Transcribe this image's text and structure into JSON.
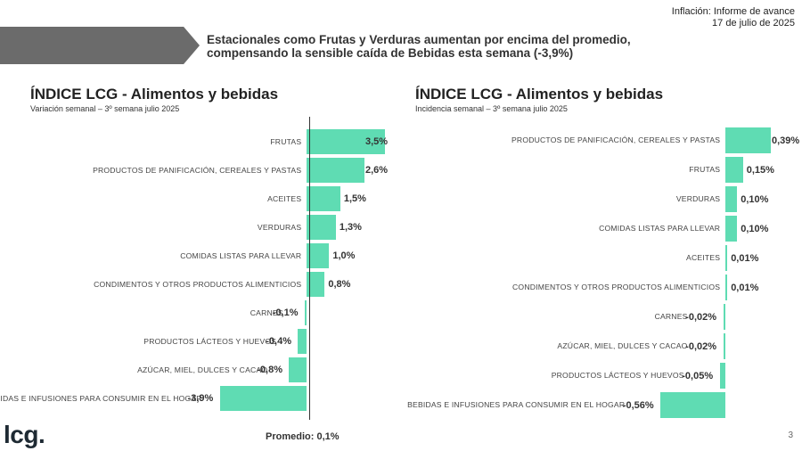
{
  "header": {
    "report_title": "Inflación: Informe de avance",
    "report_date": "17 de julio de 2025",
    "headline_line1": "Estacionales como Frutas y Verduras aumentan por encima del promedio,",
    "headline_line2": "compensando la sensible caída de Bebidas esta semana (-3,9%)"
  },
  "chart_data": [
    {
      "type": "bar",
      "orientation": "horizontal",
      "title": "ÍNDICE LCG - Alimentos y bebidas",
      "subtitle": "Variación semanal – 3º semana julio 2025",
      "categories": [
        "FRUTAS",
        "PRODUCTOS DE PANIFICACIÓN, CEREALES Y PASTAS",
        "ACEITES",
        "VERDURAS",
        "COMIDAS LISTAS PARA LLEVAR",
        "CONDIMENTOS Y OTROS PRODUCTOS ALIMENTICIOS",
        "CARNES",
        "PRODUCTOS LÁCTEOS Y HUEVOS",
        "AZÚCAR, MIEL, DULCES Y CACAO",
        "BEBIDAS E INFUSIONES PARA CONSUMIR EN EL HOGAR"
      ],
      "values": [
        3.5,
        2.6,
        1.5,
        1.3,
        1.0,
        0.8,
        -0.1,
        -0.4,
        -0.8,
        -3.9
      ],
      "value_labels": [
        "3,5%",
        "2,6%",
        "1,5%",
        "1,3%",
        "1,0%",
        "0,8%",
        "-0,1%",
        "-0,4%",
        "-0,8%",
        "-3,9%"
      ],
      "average": 0.1,
      "average_label": "Promedio: 0,1%",
      "xlim": [
        -4.8,
        3.5
      ],
      "bar_color": "#5fdcb3"
    },
    {
      "type": "bar",
      "orientation": "horizontal",
      "title": "ÍNDICE LCG - Alimentos y bebidas",
      "subtitle": "Incidencia semanal – 3º semana julio 2025",
      "categories": [
        "PRODUCTOS DE PANIFICACIÓN, CEREALES Y PASTAS",
        "FRUTAS",
        "VERDURAS",
        "COMIDAS LISTAS PARA LLEVAR",
        "ACEITES",
        "CONDIMENTOS Y OTROS PRODUCTOS ALIMENTICIOS",
        "CARNES",
        "AZÚCAR, MIEL, DULCES Y CACAO",
        "PRODUCTOS LÁCTEOS Y HUEVOS",
        "BEBIDAS E INFUSIONES PARA CONSUMIR EN EL HOGAR"
      ],
      "values": [
        0.39,
        0.15,
        0.1,
        0.1,
        0.01,
        0.01,
        -0.02,
        -0.02,
        -0.05,
        -0.56
      ],
      "value_labels": [
        "0,39%",
        "0,15%",
        "0,10%",
        "0,10%",
        "0,01%",
        "0,01%",
        "-0,02%",
        "-0,02%",
        "-0,05%",
        "-0,56%"
      ],
      "xlim": [
        -0.7,
        0.39
      ],
      "bar_color": "#5fdcb3"
    }
  ],
  "footer": {
    "logo": "lcg.",
    "page_number": "3"
  }
}
